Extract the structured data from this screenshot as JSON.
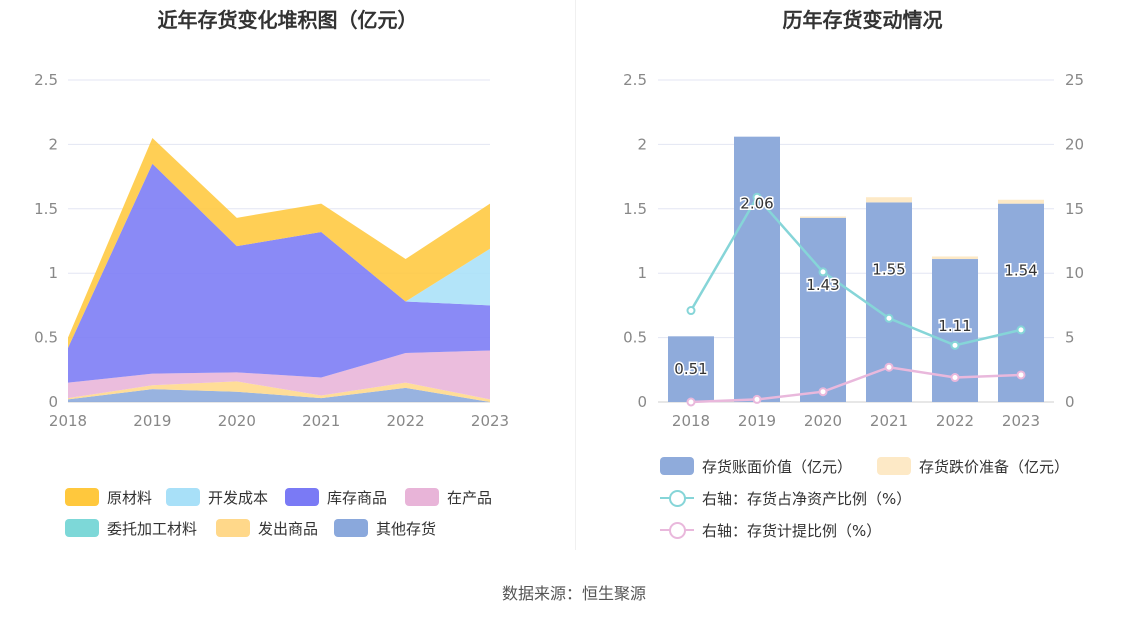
{
  "left": {
    "title": "近年存货变化堆积图（亿元）",
    "legend": [
      {
        "name": "原材料",
        "color": "#ffc83d"
      },
      {
        "name": "开发成本",
        "color": "#a8e0f8"
      },
      {
        "name": "库存商品",
        "color": "#7a7af5"
      },
      {
        "name": "在产品",
        "color": "#e8b4d8"
      },
      {
        "name": "委托加工材料",
        "color": "#7dd8d8"
      },
      {
        "name": "发出商品",
        "color": "#ffd88a"
      },
      {
        "name": "其他存货",
        "color": "#8aa8dc"
      }
    ]
  },
  "right": {
    "title": "历年存货变动情况",
    "legend": [
      {
        "name": "存货账面价值（亿元）",
        "color": "#8fabdb",
        "kind": "bar"
      },
      {
        "name": "存货跌价准备（亿元）",
        "color": "#fde9c6",
        "kind": "bar"
      },
      {
        "name": "右轴：存货占净资产比例（%）",
        "color": "#86d5d8",
        "kind": "line"
      },
      {
        "name": "右轴：存货计提比例（%）",
        "color": "#e9b8dc",
        "kind": "line"
      }
    ]
  },
  "source": "数据来源：恒生聚源",
  "chart_data": [
    {
      "type": "area",
      "title": "近年存货变化堆积图（亿元）",
      "stacked": true,
      "categories": [
        "2018",
        "2019",
        "2020",
        "2021",
        "2022",
        "2023"
      ],
      "yticks": [
        "0",
        "0.5",
        "1",
        "1.5",
        "2",
        "2.5"
      ],
      "ylim": [
        0,
        2.5
      ],
      "grid": true,
      "legend_position": "bottom",
      "series": [
        {
          "name": "其他存货",
          "color": "#8aa8dc",
          "values": [
            0.02,
            0.1,
            0.08,
            0.03,
            0.11,
            0.0
          ]
        },
        {
          "name": "发出商品",
          "color": "#ffd88a",
          "values": [
            0.01,
            0.03,
            0.08,
            0.02,
            0.04,
            0.02
          ]
        },
        {
          "name": "委托加工材料",
          "color": "#7dd8d8",
          "values": [
            0.0,
            0.0,
            0.0,
            0.0,
            0.0,
            0.0
          ]
        },
        {
          "name": "在产品",
          "color": "#e8b4d8",
          "values": [
            0.12,
            0.09,
            0.07,
            0.14,
            0.23,
            0.38
          ]
        },
        {
          "name": "库存商品",
          "color": "#7a7af5",
          "values": [
            0.27,
            1.63,
            0.98,
            1.13,
            0.4,
            0.35
          ]
        },
        {
          "name": "开发成本",
          "color": "#a8e0f8",
          "values": [
            0.0,
            0.0,
            0.0,
            0.0,
            0.0,
            0.44
          ]
        },
        {
          "name": "原材料",
          "color": "#ffc83d",
          "values": [
            0.08,
            0.2,
            0.22,
            0.22,
            0.33,
            0.35
          ]
        }
      ]
    },
    {
      "type": "bar",
      "title": "历年存货变动情况",
      "categories": [
        "2018",
        "2019",
        "2020",
        "2021",
        "2022",
        "2023"
      ],
      "yticks_left": [
        "0",
        "0.5",
        "1",
        "1.5",
        "2",
        "2.5"
      ],
      "yticks_right": [
        "0",
        "5",
        "10",
        "15",
        "20",
        "25"
      ],
      "ylim_left": [
        0,
        2.5
      ],
      "ylim_right": [
        0,
        25
      ],
      "grid": true,
      "legend_position": "bottom",
      "series": [
        {
          "name": "存货账面价值（亿元）",
          "kind": "bar",
          "axis": "left",
          "color": "#8fabdb",
          "values": [
            0.51,
            2.06,
            1.43,
            1.55,
            1.11,
            1.54
          ],
          "labels": [
            "0.51",
            "2.06",
            "1.43",
            "1.55",
            "1.11",
            "1.54"
          ]
        },
        {
          "name": "存货跌价准备（亿元）",
          "kind": "bar",
          "axis": "left",
          "color": "#fde9c6",
          "values": [
            0.0,
            0.0,
            0.01,
            0.04,
            0.02,
            0.03
          ]
        },
        {
          "name": "右轴：存货占净资产比例（%）",
          "kind": "line",
          "axis": "right",
          "color": "#86d5d8",
          "values": [
            7.1,
            15.9,
            10.1,
            6.5,
            4.4,
            5.6
          ]
        },
        {
          "name": "右轴：存货计提比例（%）",
          "kind": "line",
          "axis": "right",
          "color": "#e9b8dc",
          "values": [
            0.0,
            0.2,
            0.8,
            2.7,
            1.9,
            2.1
          ]
        }
      ]
    }
  ]
}
